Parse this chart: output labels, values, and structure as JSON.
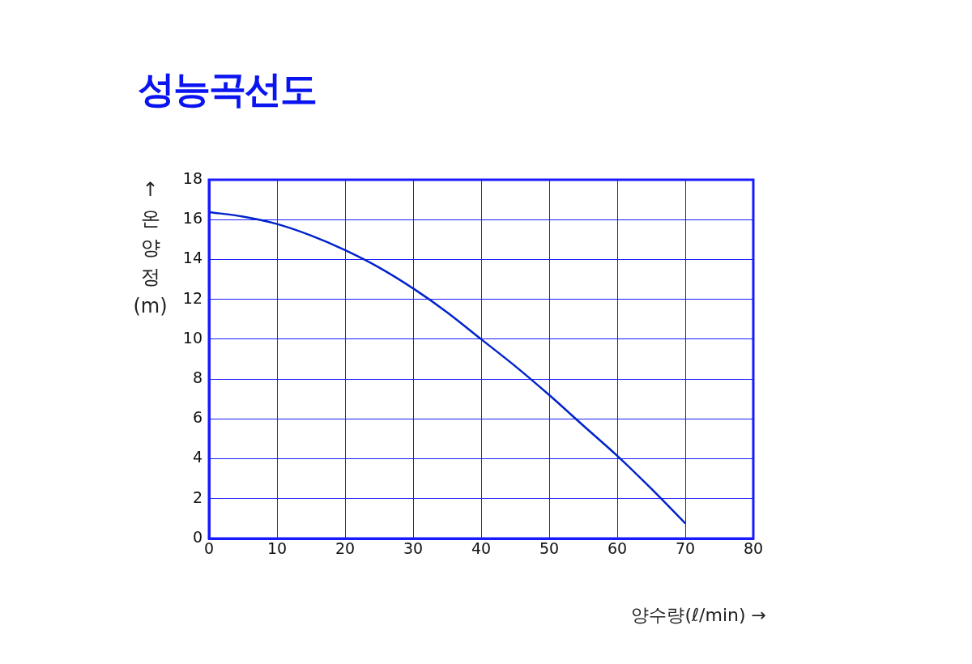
{
  "chart_data": {
    "type": "line",
    "title": "성능곡선도",
    "xlabel": "양수량(ℓ/min) →",
    "ylabel": "↑온양정(m)",
    "x": [
      0,
      5,
      10,
      15,
      20,
      25,
      30,
      35,
      40,
      45,
      50,
      55,
      60,
      65,
      70
    ],
    "series": [
      {
        "color": "#0022cc",
        "values": [
          16.38,
          16.15,
          15.78,
          15.2,
          14.47,
          13.6,
          12.55,
          11.35,
          10.0,
          8.65,
          7.2,
          5.67,
          4.15,
          2.5,
          0.76
        ]
      }
    ],
    "xlim": [
      0,
      80
    ],
    "xticks": [
      0,
      10,
      20,
      30,
      40,
      50,
      60,
      70,
      80
    ],
    "ylim": [
      0,
      18
    ],
    "yticks": [
      0,
      2,
      4,
      6,
      8,
      10,
      12,
      14,
      16,
      18
    ],
    "grid": true,
    "legend": false,
    "marker": "none",
    "line_style": "solid"
  }
}
